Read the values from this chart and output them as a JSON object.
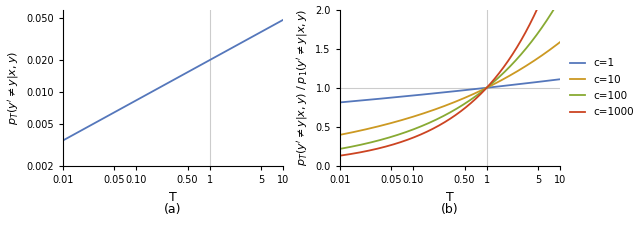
{
  "T_min": 0.01,
  "T_max": 10,
  "T_vline": 1.0,
  "hline_y": 1.0,
  "subplot_a": {
    "ylabel": "$p_T(y'\\neq y|x,y)$",
    "xlabel": "T",
    "label": "(a)",
    "ylim": [
      0.002,
      0.06
    ],
    "yticks": [
      0.002,
      0.005,
      0.01,
      0.02,
      0.05
    ],
    "ytick_labels": [
      "0.002",
      "0.005",
      "0.010",
      "0.020",
      "0.050"
    ],
    "line_color": "#5577bb",
    "p1": 0.02,
    "alpha": 0.38
  },
  "subplot_b": {
    "ylabel": "$p_T(y'\\neq y|x,y)\\;/\\;p_1(y'\\neq y|x,y)$",
    "xlabel": "T",
    "label": "(b)",
    "ylim": [
      0.0,
      2.0
    ],
    "yticks": [
      0.0,
      0.5,
      1.0,
      1.5,
      2.0
    ],
    "ytick_labels": [
      "0.0",
      "0.5",
      "1.0",
      "1.5",
      "2.0"
    ],
    "c_values": [
      1,
      10,
      100,
      1000
    ],
    "line_colors": [
      "#5577bb",
      "#cc9922",
      "#88aa33",
      "#cc4422"
    ],
    "legend_labels": [
      "c=1",
      "c=10",
      "c=100",
      "c=1000"
    ],
    "betas": [
      0.045,
      0.2,
      0.33,
      0.44
    ]
  },
  "xtick_positions": [
    0.01,
    0.05,
    0.1,
    0.5,
    1,
    5,
    10
  ],
  "xtick_labels_a": [
    "0.01",
    "0.05",
    "0.10",
    "0.50",
    "1",
    "5",
    "10"
  ],
  "fig_background": "#ffffff"
}
